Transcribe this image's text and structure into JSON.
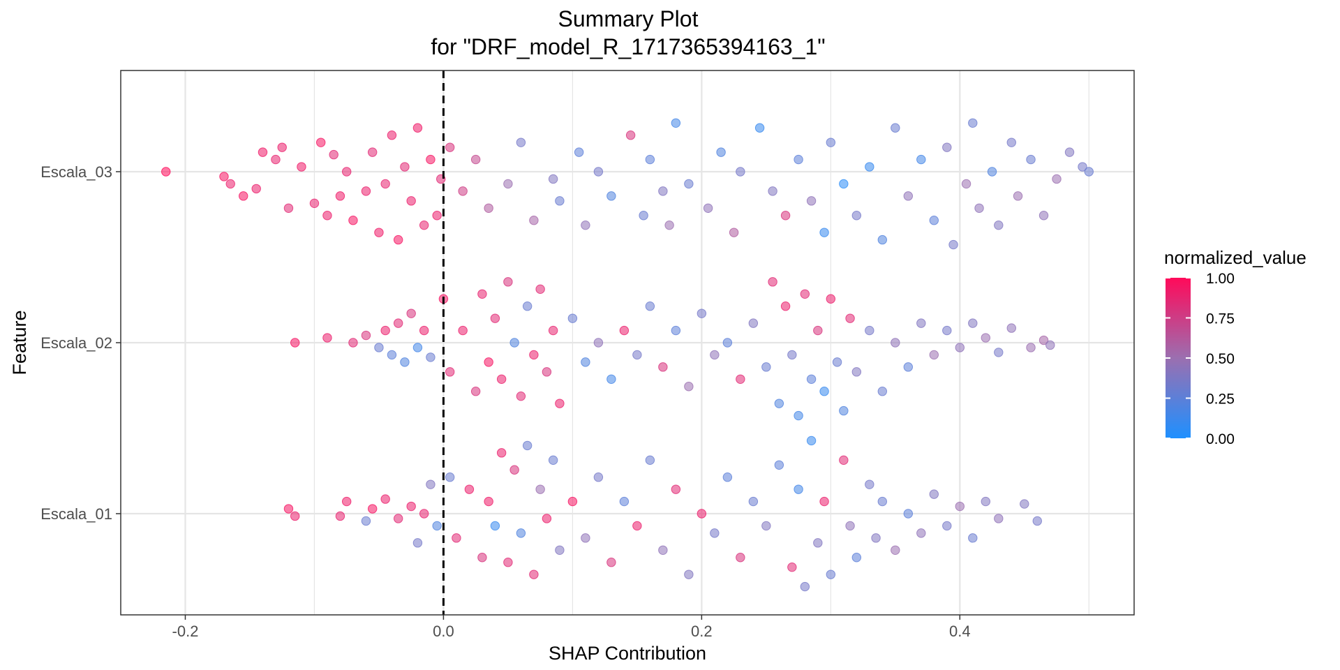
{
  "chart_data": {
    "type": "scatter",
    "title": "Summary Plot",
    "subtitle": "for \"DRF_model_R_1717365394163_1\"",
    "xlabel": "SHAP Contribution",
    "ylabel": "Feature",
    "xlim": [
      -0.25,
      0.535
    ],
    "x_ticks": [
      {
        "value": -0.2,
        "label": "-0.2"
      },
      {
        "value": 0.0,
        "label": "0.0"
      },
      {
        "value": 0.2,
        "label": "0.2"
      },
      {
        "value": 0.4,
        "label": "0.4"
      }
    ],
    "reference_line": {
      "x": 0.0,
      "style": "dashed"
    },
    "grid": true,
    "features": [
      "Escala_03",
      "Escala_02",
      "Escala_01"
    ],
    "legend": {
      "title": "normalized_value",
      "position": "right",
      "ticks": [
        "1.00",
        "0.75",
        "0.50",
        "0.25",
        "0.00"
      ],
      "low_color": "#1E90FF",
      "mid_color": "#9B6FB0",
      "high_color": "#FF0A5A"
    },
    "series": [
      {
        "feature": "Escala_03",
        "points": [
          [
            -0.215,
            1.0
          ],
          [
            -0.17,
            0.98
          ],
          [
            -0.165,
            0.95
          ],
          [
            -0.155,
            0.9
          ],
          [
            -0.145,
            0.93
          ],
          [
            -0.14,
            1.08
          ],
          [
            -0.13,
            1.05
          ],
          [
            -0.125,
            1.1
          ],
          [
            -0.12,
            0.85
          ],
          [
            -0.11,
            1.02
          ],
          [
            -0.1,
            0.87
          ],
          [
            -0.095,
            1.12
          ],
          [
            -0.09,
            0.82
          ],
          [
            -0.085,
            1.07
          ],
          [
            -0.08,
            0.9
          ],
          [
            -0.075,
            1.0
          ],
          [
            -0.07,
            0.8
          ],
          [
            -0.06,
            0.92
          ],
          [
            -0.055,
            1.08
          ],
          [
            -0.05,
            0.75
          ],
          [
            -0.045,
            0.95
          ],
          [
            -0.04,
            1.15
          ],
          [
            -0.035,
            0.72
          ],
          [
            -0.03,
            1.02
          ],
          [
            -0.025,
            0.88
          ],
          [
            -0.02,
            1.18
          ],
          [
            -0.015,
            0.78
          ],
          [
            -0.01,
            1.05
          ],
          [
            -0.005,
            0.82
          ],
          [
            -0.002,
            0.97
          ],
          [
            0.005,
            1.1
          ],
          [
            0.015,
            0.92
          ],
          [
            0.025,
            1.05
          ],
          [
            0.035,
            0.85
          ],
          [
            0.05,
            0.95
          ],
          [
            0.06,
            1.12
          ],
          [
            0.07,
            0.8
          ],
          [
            0.085,
            0.97
          ],
          [
            0.09,
            0.88
          ],
          [
            0.105,
            1.08
          ],
          [
            0.11,
            0.78
          ],
          [
            0.12,
            1.0
          ],
          [
            0.13,
            0.9
          ],
          [
            0.145,
            1.15
          ],
          [
            0.155,
            0.82
          ],
          [
            0.16,
            1.05
          ],
          [
            0.17,
            0.92
          ],
          [
            0.175,
            0.78
          ],
          [
            0.18,
            1.2
          ],
          [
            0.19,
            0.95
          ],
          [
            0.205,
            0.85
          ],
          [
            0.215,
            1.08
          ],
          [
            0.225,
            0.75
          ],
          [
            0.23,
            1.0
          ],
          [
            0.245,
            1.18
          ],
          [
            0.255,
            0.92
          ],
          [
            0.265,
            0.82
          ],
          [
            0.275,
            1.05
          ],
          [
            0.285,
            0.88
          ],
          [
            0.295,
            0.75
          ],
          [
            0.3,
            1.12
          ],
          [
            0.31,
            0.95
          ],
          [
            0.32,
            0.82
          ],
          [
            0.33,
            1.02
          ],
          [
            0.34,
            0.72
          ],
          [
            0.35,
            1.18
          ],
          [
            0.36,
            0.9
          ],
          [
            0.37,
            1.05
          ],
          [
            0.38,
            0.8
          ],
          [
            0.39,
            1.1
          ],
          [
            0.395,
            0.7
          ],
          [
            0.405,
            0.95
          ],
          [
            0.41,
            1.2
          ],
          [
            0.415,
            0.85
          ],
          [
            0.425,
            1.0
          ],
          [
            0.43,
            0.78
          ],
          [
            0.44,
            1.12
          ],
          [
            0.445,
            0.9
          ],
          [
            0.455,
            1.05
          ],
          [
            0.465,
            0.82
          ],
          [
            0.475,
            0.97
          ],
          [
            0.485,
            1.08
          ],
          [
            0.495,
            1.02
          ],
          [
            0.5,
            1.0
          ]
        ],
        "norm": [
          1.0,
          0.95,
          0.9,
          0.95,
          0.9,
          0.92,
          0.88,
          0.9,
          0.85,
          0.92,
          0.88,
          0.95,
          0.9,
          0.85,
          0.92,
          0.88,
          0.95,
          0.9,
          0.85,
          0.92,
          0.88,
          0.9,
          0.95,
          0.85,
          0.9,
          0.92,
          0.88,
          0.95,
          0.9,
          0.85,
          0.8,
          0.75,
          0.7,
          0.6,
          0.5,
          0.35,
          0.55,
          0.4,
          0.3,
          0.25,
          0.45,
          0.35,
          0.2,
          0.8,
          0.3,
          0.25,
          0.4,
          0.5,
          0.15,
          0.3,
          0.45,
          0.2,
          0.6,
          0.35,
          0.1,
          0.4,
          0.8,
          0.25,
          0.45,
          0.1,
          0.3,
          0.05,
          0.35,
          0.1,
          0.2,
          0.3,
          0.45,
          0.15,
          0.25,
          0.4,
          0.35,
          0.5,
          0.3,
          0.45,
          0.2,
          0.4,
          0.35,
          0.5,
          0.3,
          0.45,
          0.5,
          0.4,
          0.35,
          0.3
        ]
      },
      {
        "feature": "Escala_02",
        "points": [
          [
            -0.115,
            1.0
          ],
          [
            -0.09,
            1.02
          ],
          [
            -0.07,
            1.0
          ],
          [
            -0.06,
            1.03
          ],
          [
            -0.05,
            0.98
          ],
          [
            -0.045,
            1.05
          ],
          [
            -0.04,
            0.95
          ],
          [
            -0.035,
            1.08
          ],
          [
            -0.03,
            0.92
          ],
          [
            -0.025,
            1.12
          ],
          [
            -0.02,
            0.98
          ],
          [
            -0.015,
            1.05
          ],
          [
            -0.01,
            0.94
          ],
          [
            0.0,
            1.18
          ],
          [
            0.005,
            0.88
          ],
          [
            0.015,
            1.05
          ],
          [
            0.025,
            0.8
          ],
          [
            0.03,
            1.2
          ],
          [
            0.035,
            0.92
          ],
          [
            0.04,
            1.1
          ],
          [
            0.045,
            0.85
          ],
          [
            0.05,
            1.25
          ],
          [
            0.055,
            1.0
          ],
          [
            0.06,
            0.78
          ],
          [
            0.065,
            1.15
          ],
          [
            0.07,
            0.95
          ],
          [
            0.075,
            1.22
          ],
          [
            0.08,
            0.88
          ],
          [
            0.085,
            1.05
          ],
          [
            0.09,
            0.75
          ],
          [
            0.1,
            1.1
          ],
          [
            0.11,
            0.92
          ],
          [
            0.12,
            1.0
          ],
          [
            0.13,
            0.85
          ],
          [
            0.14,
            1.05
          ],
          [
            0.15,
            0.95
          ],
          [
            0.16,
            1.15
          ],
          [
            0.17,
            0.9
          ],
          [
            0.18,
            1.05
          ],
          [
            0.19,
            0.82
          ],
          [
            0.2,
            1.12
          ],
          [
            0.21,
            0.95
          ],
          [
            0.22,
            1.0
          ],
          [
            0.23,
            0.85
          ],
          [
            0.24,
            1.08
          ],
          [
            0.25,
            0.9
          ],
          [
            0.255,
            1.25
          ],
          [
            0.26,
            0.75
          ],
          [
            0.265,
            1.15
          ],
          [
            0.27,
            0.95
          ],
          [
            0.275,
            0.7
          ],
          [
            0.28,
            1.2
          ],
          [
            0.285,
            0.85
          ],
          [
            0.29,
            1.05
          ],
          [
            0.295,
            0.8
          ],
          [
            0.3,
            1.18
          ],
          [
            0.305,
            0.92
          ],
          [
            0.31,
            0.72
          ],
          [
            0.315,
            1.1
          ],
          [
            0.32,
            0.88
          ],
          [
            0.33,
            1.05
          ],
          [
            0.34,
            0.8
          ],
          [
            0.35,
            1.0
          ],
          [
            0.36,
            0.9
          ],
          [
            0.37,
            1.08
          ],
          [
            0.38,
            0.95
          ],
          [
            0.39,
            1.05
          ],
          [
            0.4,
            0.98
          ],
          [
            0.41,
            1.08
          ],
          [
            0.42,
            1.02
          ],
          [
            0.43,
            0.96
          ],
          [
            0.44,
            1.06
          ],
          [
            0.455,
            0.98
          ],
          [
            0.465,
            1.01
          ],
          [
            0.47,
            0.99
          ]
        ],
        "norm": [
          0.95,
          0.9,
          0.85,
          0.8,
          0.3,
          0.9,
          0.25,
          0.85,
          0.2,
          0.8,
          0.15,
          0.9,
          0.3,
          0.95,
          0.85,
          0.9,
          0.8,
          0.88,
          0.95,
          0.85,
          0.9,
          0.8,
          0.2,
          0.85,
          0.3,
          0.9,
          0.85,
          0.8,
          0.88,
          0.9,
          0.3,
          0.2,
          0.45,
          0.15,
          0.9,
          0.35,
          0.3,
          0.8,
          0.25,
          0.5,
          0.35,
          0.45,
          0.25,
          0.85,
          0.4,
          0.3,
          0.85,
          0.2,
          0.9,
          0.35,
          0.15,
          0.85,
          0.25,
          0.8,
          0.1,
          0.9,
          0.3,
          0.2,
          0.85,
          0.4,
          0.35,
          0.3,
          0.45,
          0.25,
          0.4,
          0.5,
          0.35,
          0.45,
          0.4,
          0.5,
          0.35,
          0.45,
          0.5,
          0.55,
          0.45
        ]
      },
      {
        "feature": "Escala_01",
        "points": [
          [
            -0.12,
            1.02
          ],
          [
            -0.115,
            0.99
          ],
          [
            -0.08,
            0.99
          ],
          [
            -0.075,
            1.05
          ],
          [
            -0.06,
            0.97
          ],
          [
            -0.055,
            1.02
          ],
          [
            -0.045,
            1.06
          ],
          [
            -0.035,
            0.98
          ],
          [
            -0.025,
            1.03
          ],
          [
            -0.02,
            0.88
          ],
          [
            -0.015,
            1.0
          ],
          [
            -0.01,
            1.12
          ],
          [
            -0.005,
            0.95
          ],
          [
            0.005,
            1.15
          ],
          [
            0.01,
            0.9
          ],
          [
            0.02,
            1.1
          ],
          [
            0.03,
            0.82
          ],
          [
            0.035,
            1.05
          ],
          [
            0.04,
            0.95
          ],
          [
            0.045,
            1.25
          ],
          [
            0.05,
            0.8
          ],
          [
            0.055,
            1.18
          ],
          [
            0.06,
            0.92
          ],
          [
            0.065,
            1.28
          ],
          [
            0.07,
            0.75
          ],
          [
            0.075,
            1.1
          ],
          [
            0.08,
            0.98
          ],
          [
            0.085,
            1.22
          ],
          [
            0.09,
            0.85
          ],
          [
            0.1,
            1.05
          ],
          [
            0.11,
            0.9
          ],
          [
            0.12,
            1.15
          ],
          [
            0.13,
            0.8
          ],
          [
            0.14,
            1.05
          ],
          [
            0.15,
            0.95
          ],
          [
            0.16,
            1.22
          ],
          [
            0.17,
            0.85
          ],
          [
            0.18,
            1.1
          ],
          [
            0.19,
            0.75
          ],
          [
            0.2,
            1.0
          ],
          [
            0.21,
            0.92
          ],
          [
            0.22,
            1.15
          ],
          [
            0.23,
            0.82
          ],
          [
            0.24,
            1.05
          ],
          [
            0.25,
            0.95
          ],
          [
            0.26,
            1.2
          ],
          [
            0.27,
            0.78
          ],
          [
            0.275,
            1.1
          ],
          [
            0.28,
            0.7
          ],
          [
            0.285,
            1.3
          ],
          [
            0.29,
            0.88
          ],
          [
            0.295,
            1.05
          ],
          [
            0.3,
            0.75
          ],
          [
            0.31,
            1.22
          ],
          [
            0.315,
            0.95
          ],
          [
            0.32,
            0.82
          ],
          [
            0.33,
            1.12
          ],
          [
            0.335,
            0.9
          ],
          [
            0.34,
            1.05
          ],
          [
            0.35,
            0.85
          ],
          [
            0.36,
            1.0
          ],
          [
            0.37,
            0.92
          ],
          [
            0.38,
            1.08
          ],
          [
            0.39,
            0.95
          ],
          [
            0.4,
            1.03
          ],
          [
            0.41,
            0.9
          ],
          [
            0.42,
            1.05
          ],
          [
            0.43,
            0.98
          ],
          [
            0.45,
            1.04
          ],
          [
            0.46,
            0.97
          ]
        ],
        "norm": [
          0.95,
          0.9,
          0.88,
          0.92,
          0.3,
          0.95,
          0.9,
          0.85,
          0.9,
          0.35,
          0.88,
          0.4,
          0.2,
          0.3,
          0.85,
          0.9,
          0.8,
          0.92,
          0.1,
          0.9,
          0.85,
          0.8,
          0.2,
          0.3,
          0.85,
          0.5,
          0.9,
          0.3,
          0.4,
          0.95,
          0.45,
          0.35,
          0.8,
          0.25,
          0.9,
          0.3,
          0.45,
          0.85,
          0.4,
          0.9,
          0.35,
          0.25,
          0.8,
          0.3,
          0.4,
          0.25,
          0.85,
          0.15,
          0.35,
          0.1,
          0.4,
          0.9,
          0.3,
          0.85,
          0.45,
          0.25,
          0.35,
          0.4,
          0.3,
          0.5,
          0.25,
          0.45,
          0.4,
          0.35,
          0.5,
          0.3,
          0.4,
          0.45,
          0.4,
          0.35
        ]
      }
    ]
  }
}
